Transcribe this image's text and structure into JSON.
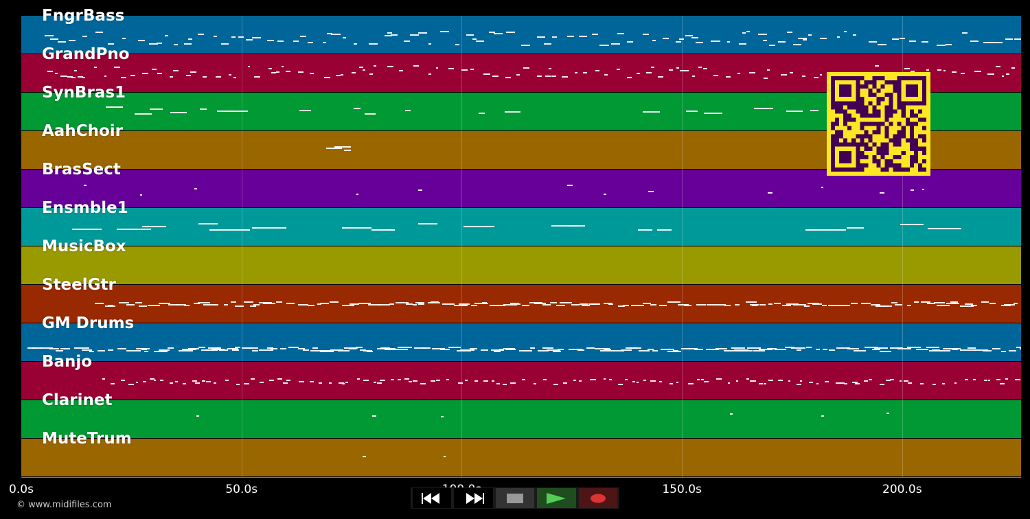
{
  "tracks": [
    {
      "name": "FngrBass",
      "color": "#006699"
    },
    {
      "name": "GrandPno",
      "color": "#990033"
    },
    {
      "name": "SynBras1",
      "color": "#009933"
    },
    {
      "name": "AahChoir",
      "color": "#996600"
    },
    {
      "name": "BrasSect",
      "color": "#660099"
    },
    {
      "name": "Ensmble1",
      "color": "#009999"
    },
    {
      "name": "MusicBox",
      "color": "#999900"
    },
    {
      "name": "SteelGtr",
      "color": "#992900"
    },
    {
      "name": "GM Drums",
      "color": "#006699"
    },
    {
      "name": "Banjo",
      "color": "#990033"
    },
    {
      "name": "Clarinet",
      "color": "#009933"
    },
    {
      "name": "MuteTrum",
      "color": "#996600"
    }
  ],
  "timeline": {
    "max_seconds": 227,
    "ticks": [
      {
        "label": "0.0s",
        "value": 0
      },
      {
        "label": "50.0s",
        "value": 50
      },
      {
        "label": "100.0s",
        "value": 100
      },
      {
        "label": "150.0s",
        "value": 150
      },
      {
        "label": "200.0s",
        "value": 200
      }
    ]
  },
  "copyright": "© www.midifiles.com",
  "transport": {
    "rewind": {
      "icon": "rewind-icon"
    },
    "fast_forward": {
      "icon": "fast-forward-icon"
    },
    "stop": {
      "icon": "stop-icon",
      "color": "#999999"
    },
    "play": {
      "icon": "play-icon",
      "color": "#55cc55"
    },
    "record": {
      "icon": "record-icon",
      "color": "#dd3333"
    }
  },
  "qr_colors": {
    "fg": "#440154",
    "bg": "#fde725"
  }
}
